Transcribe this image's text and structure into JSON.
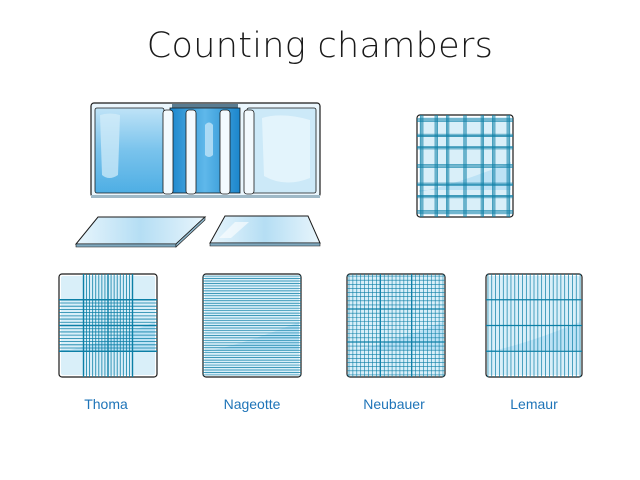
{
  "title": "Counting chambers",
  "colors": {
    "frame": "#1a1a1a",
    "glass_light": "#cfe9f8",
    "glass_mid": "#7cc4ec",
    "glass_dark": "#1f8fd6",
    "grid_line": "#0c7fa6",
    "label": "#1e74b8"
  },
  "chambers": [
    {
      "label": "Thoma"
    },
    {
      "label": "Nageotte"
    },
    {
      "label": "Neubauer"
    },
    {
      "label": "Lemaur"
    }
  ]
}
